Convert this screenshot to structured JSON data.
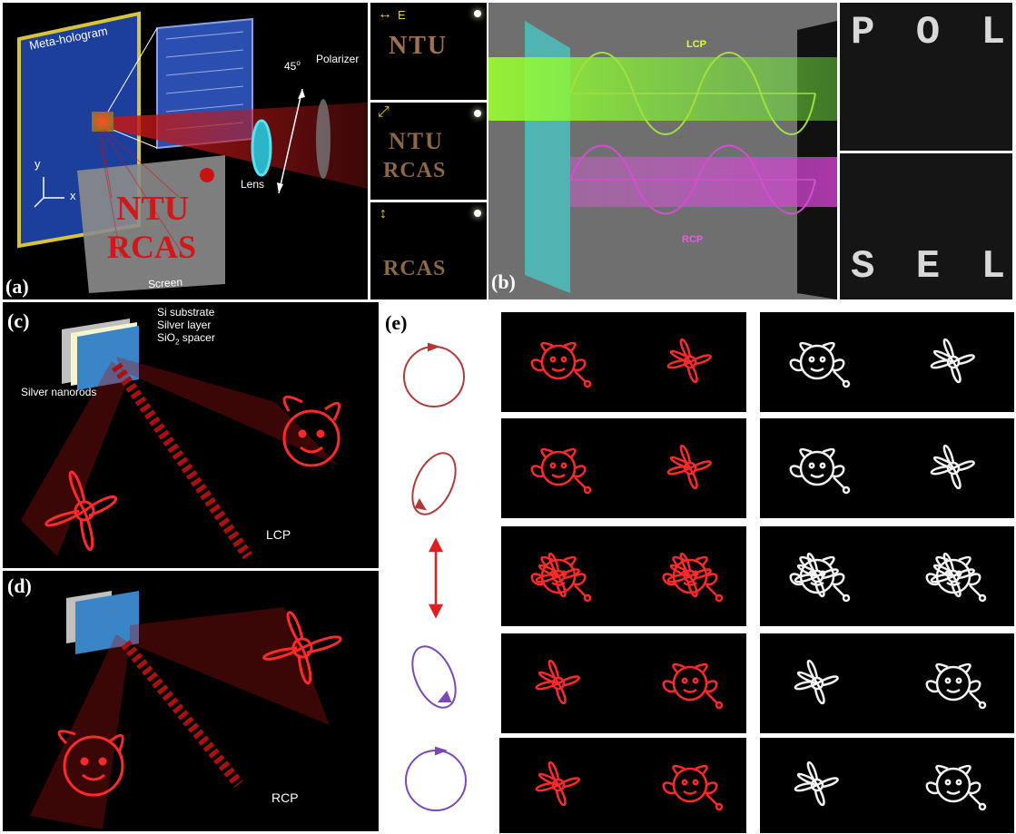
{
  "panels": {
    "a": {
      "label": "(a)",
      "meta_hologram": "Meta-hologram",
      "polarizer": "Polarizer",
      "lens": "Lens",
      "angle": "45",
      "angle_unit": "o",
      "screen_label": "Screen",
      "screen_text_1": "NTU",
      "screen_text_2": "RCAS",
      "axis_y": "y",
      "axis_x": "x",
      "insets": [
        {
          "pol_label": "E",
          "line1": "NTU",
          "line2": ""
        },
        {
          "pol_label": "",
          "line1": "NTU",
          "line2": "RCAS"
        },
        {
          "pol_label": "",
          "line1": "",
          "line2": "RCAS"
        }
      ]
    },
    "b": {
      "label": "(b)",
      "lcp": "LCP",
      "rcp": "RCP",
      "top_letters": [
        "P",
        "O",
        "L"
      ],
      "bottom_letters": [
        "S",
        "E",
        "L"
      ]
    },
    "c": {
      "label": "(c)",
      "si_substrate": "Si substrate",
      "silver_layer": "Silver layer",
      "spacer_prefix": "SiO",
      "spacer_sub": "2",
      "spacer_suffix": " spacer",
      "nanorods": "Silver nanorods",
      "beam": "LCP"
    },
    "d": {
      "label": "(d)",
      "beam": "RCP"
    },
    "e": {
      "label": "(e)",
      "colors": {
        "red_image": "#ff2a2a",
        "white_image": "#f2f2f2",
        "circle_lcp": "#b03a3a",
        "circle_rcp": "#7a4ab0",
        "linear": "#e02020"
      }
    }
  }
}
